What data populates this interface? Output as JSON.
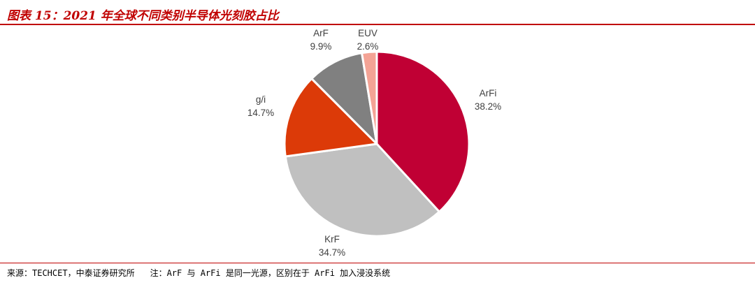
{
  "title": "图表 15：2021 年全球不同类别半导体光刻胶占比",
  "footer": {
    "source": "来源：TECHCET，中泰证券研究所",
    "note": "注：ArF 与 ArFi 是同一光源，区别在于 ArFi 加入浸没系统"
  },
  "colors": {
    "accent": "#c00000",
    "ArFi": "#c00034",
    "KrF": "#c0c0c0",
    "g/i": "#dc3a08",
    "ArF": "#808080",
    "EUV": "#f4a395"
  },
  "chart_data": {
    "type": "pie",
    "title": "",
    "start": "12 o'clock, clockwise",
    "slices": [
      {
        "label": "ArFi",
        "value": 38.2,
        "value_label": "38.2%",
        "color": "#c00034"
      },
      {
        "label": "KrF",
        "value": 34.7,
        "value_label": "34.7%",
        "color": "#c0c0c0"
      },
      {
        "label": "g/i",
        "value": 14.7,
        "value_label": "14.7%",
        "color": "#dc3a08"
      },
      {
        "label": "ArF",
        "value": 9.9,
        "value_label": "9.9%",
        "color": "#808080"
      },
      {
        "label": "EUV",
        "value": 2.6,
        "value_label": "2.6%",
        "color": "#f4a395"
      }
    ]
  }
}
